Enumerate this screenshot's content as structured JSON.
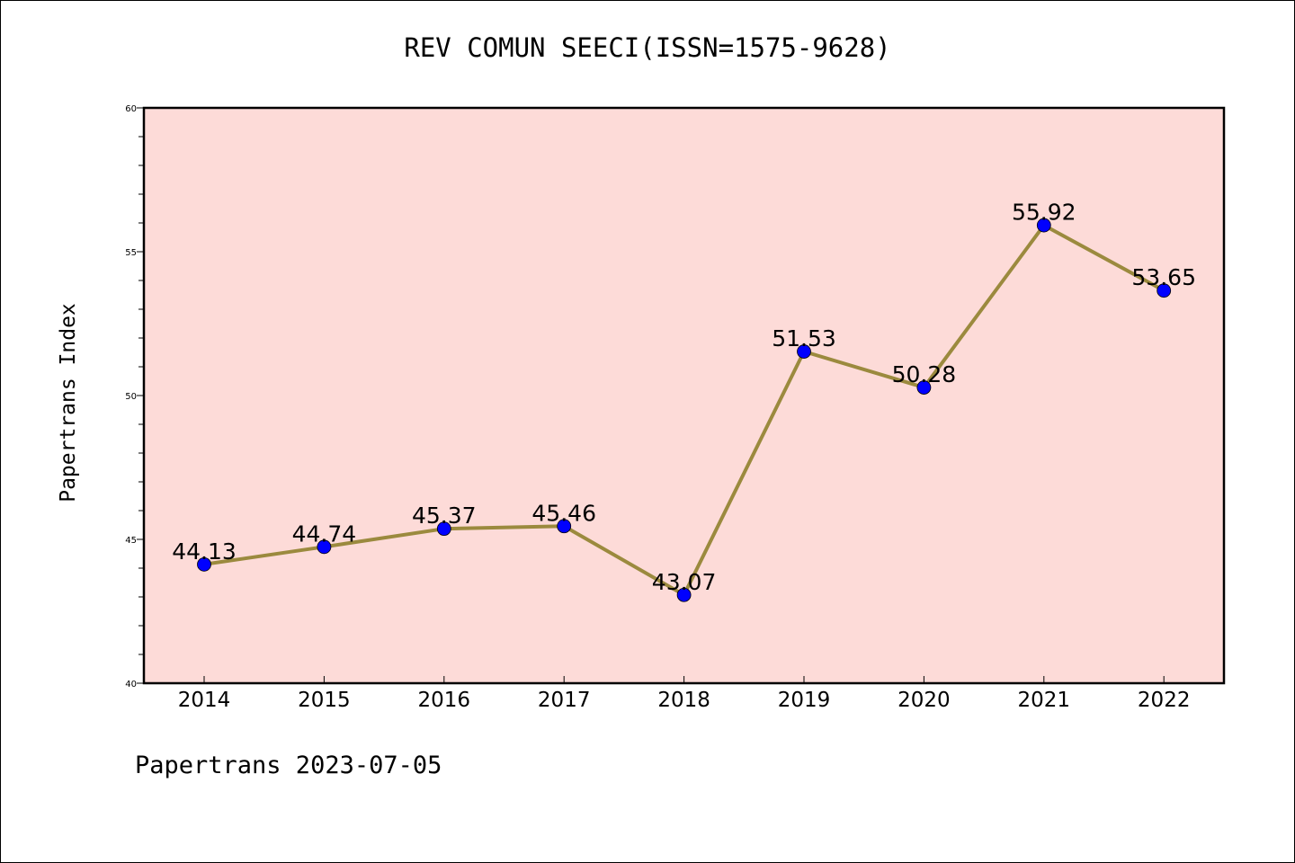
{
  "chart_data": {
    "type": "line",
    "title": "REV COMUN SEECI(ISSN=1575-9628)",
    "xlabel": "",
    "ylabel": "Papertrans Index",
    "categories": [
      "2014",
      "2015",
      "2016",
      "2017",
      "2018",
      "2019",
      "2020",
      "2021",
      "2022"
    ],
    "series": [
      {
        "values": [
          44.13,
          44.74,
          45.37,
          45.46,
          43.07,
          51.53,
          50.28,
          55.92,
          53.65
        ],
        "labels": [
          "44.13",
          "44.74",
          "45.37",
          "45.46",
          "43.07",
          "51.53",
          "50.28",
          "55.92",
          "53.65"
        ]
      }
    ],
    "ylim": [
      40,
      60
    ],
    "yticks": [
      40,
      45,
      50,
      55,
      60
    ],
    "ytick_labels": [
      "40",
      "45",
      "50",
      "55",
      "60"
    ],
    "grid": false,
    "legend": "none",
    "colors": {
      "plot_background": "#fddbd8",
      "line": "#9b8a3e",
      "marker": "#0000ff"
    }
  },
  "footer": {
    "note": "Papertrans 2023-07-05"
  }
}
